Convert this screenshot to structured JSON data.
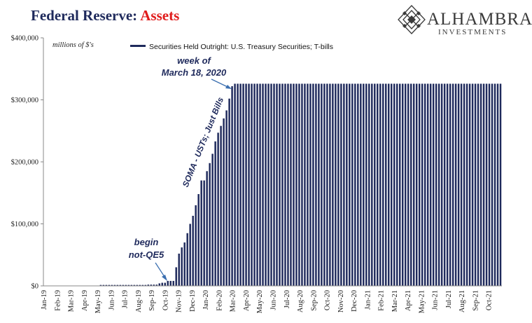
{
  "header": {
    "title_main": "Federal Reserve: ",
    "title_accent": "Assets",
    "logo_name": "ALHAMBRA",
    "logo_sub": "INVESTMENTS"
  },
  "colors": {
    "bar": "#1f2a5c",
    "title": "#1f2a5c",
    "accent": "#e01b1b"
  },
  "chart_data": {
    "type": "bar",
    "units_note": "millions of $'s",
    "legend": "Securities Held Outright: U.S. Treasury Securities; T-bills",
    "legend_position": "top",
    "grid": false,
    "ylim": [
      0,
      400000
    ],
    "yticks": [
      {
        "value": 0,
        "label": "$0"
      },
      {
        "value": 100000,
        "label": "$100,000"
      },
      {
        "value": 200000,
        "label": "$200,000"
      },
      {
        "value": 300000,
        "label": "$300,000"
      },
      {
        "value": 400000,
        "label": "$400,000"
      }
    ],
    "xlabels": [
      "Jan-19",
      "Feb-19",
      "Mar-19",
      "Apr-19",
      "May-19",
      "Jun-19",
      "Jul-19",
      "Aug-19",
      "Sep-19",
      "Oct-19",
      "Nov-19",
      "Dec-19",
      "Jan-20",
      "Feb-20",
      "Mar-20",
      "Apr-20",
      "May-20",
      "Jun-20",
      "Jul-20",
      "Aug-20",
      "Sep-20",
      "Oct-20",
      "Nov-20",
      "Dec-20",
      "Jan-21",
      "Feb-21",
      "Mar-21",
      "Apr-21",
      "May-21",
      "Jun-21",
      "Jul-21",
      "Aug-21",
      "Sep-21",
      "Oct-21"
    ],
    "series": [
      {
        "name": "Securities Held Outright: U.S. Treasury Securities; T-bills",
        "values": [
          0,
          0,
          0,
          0,
          0,
          0,
          0,
          0,
          0,
          0,
          0,
          0,
          0,
          0,
          0,
          0,
          0,
          0,
          0,
          0,
          1500,
          1500,
          1500,
          1500,
          1500,
          1500,
          1500,
          1500,
          1500,
          1500,
          1500,
          1500,
          1500,
          1500,
          1500,
          1500,
          1500,
          2000,
          2000,
          2000,
          2000,
          4000,
          5000,
          5000,
          8000,
          8000,
          8000,
          30000,
          52000,
          62000,
          70000,
          85000,
          100000,
          113000,
          130000,
          148000,
          170000,
          170000,
          185000,
          198000,
          213000,
          233000,
          247000,
          258000,
          270000,
          283000,
          302000,
          322000,
          326000,
          326000,
          326000,
          326000,
          326000,
          326000,
          326000,
          326000,
          326000,
          326000,
          326000,
          326000,
          326000,
          326000,
          326000,
          326000,
          326000,
          326000,
          326000,
          326000,
          326000,
          326000,
          326000,
          326000,
          326000,
          326000,
          326000,
          326000,
          326000,
          326000,
          326000,
          326000,
          326000,
          326000,
          326000,
          326000,
          326000,
          326000,
          326000,
          326000,
          326000,
          326000,
          326000,
          326000,
          326000,
          326000,
          326000,
          326000,
          326000,
          326000,
          326000,
          326000,
          326000,
          326000,
          326000,
          326000,
          326000,
          326000,
          326000,
          326000,
          326000,
          326000,
          326000,
          326000,
          326000,
          326000,
          326000,
          326000,
          326000,
          326000,
          326000,
          326000,
          326000,
          326000,
          326000,
          326000,
          326000,
          326000,
          326000,
          326000,
          326000,
          326000,
          326000,
          326000,
          326000,
          326000,
          326000,
          326000,
          326000,
          326000,
          326000,
          326000,
          326000,
          326000,
          326000,
          326000
        ]
      }
    ],
    "annotations": {
      "week_line1": "week of",
      "week_line2": "March 18, 2020",
      "begin_line1": "begin",
      "begin_line2": "not-QE5",
      "soma": "SOMA - USTs; Just Bills"
    }
  }
}
